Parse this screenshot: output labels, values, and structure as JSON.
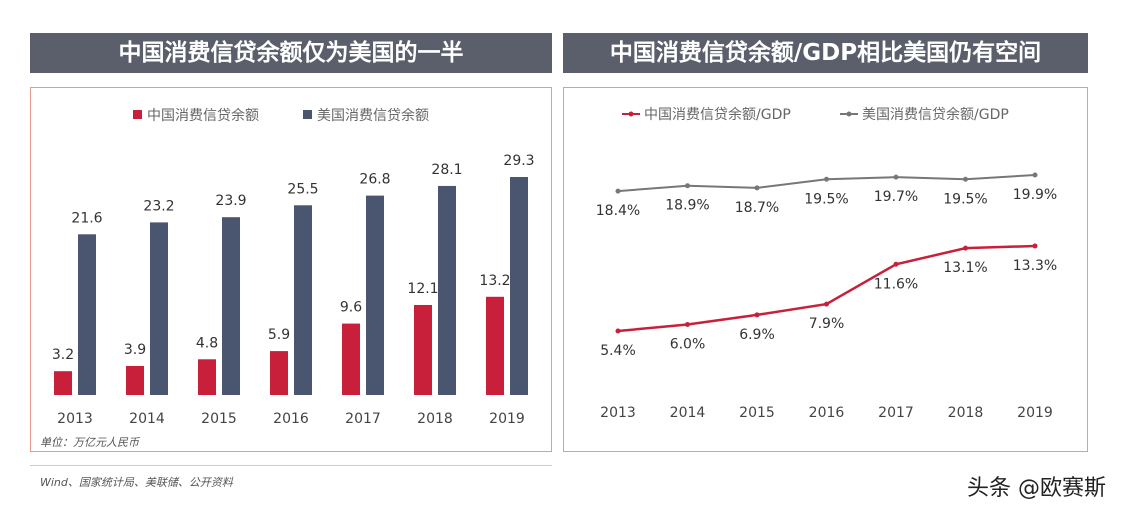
{
  "left_title": "中国消费信贷余额仅为美国的一半",
  "right_title": "中国消费信贷余额/GDP相比美国仍有空间",
  "unit_note": "单位：万亿元人民币",
  "source_note": "Wind、国家统计局、美联储、公开资料",
  "watermark": "头条 @欧赛斯",
  "chart_data": [
    {
      "type": "bar",
      "categories": [
        "2013",
        "2014",
        "2015",
        "2016",
        "2017",
        "2018",
        "2019"
      ],
      "series": [
        {
          "name": "中国消费信贷余额",
          "color": "#c8203a",
          "values": [
            3.2,
            3.9,
            4.8,
            5.9,
            9.6,
            12.1,
            13.2
          ]
        },
        {
          "name": "美国消费信贷余额",
          "color": "#4a5670",
          "values": [
            21.6,
            23.2,
            23.9,
            25.5,
            26.8,
            28.1,
            29.3
          ]
        }
      ],
      "legend": "top"
    },
    {
      "type": "line",
      "categories": [
        "2013",
        "2014",
        "2015",
        "2016",
        "2017",
        "2018",
        "2019"
      ],
      "series": [
        {
          "name": "中国消费信贷余额/GDP",
          "color": "#c8203a",
          "values": [
            5.4,
            6.0,
            6.9,
            7.9,
            11.6,
            13.1,
            13.3
          ],
          "labels": [
            "5.4%",
            "6.0%",
            "6.9%",
            "7.9%",
            "11.6%",
            "13.1%",
            "13.3%"
          ]
        },
        {
          "name": "美国消费信贷余额/GDP",
          "color": "#777777",
          "values": [
            18.4,
            18.9,
            18.7,
            19.5,
            19.7,
            19.5,
            19.9
          ],
          "labels": [
            "18.4%",
            "18.9%",
            "18.7%",
            "19.5%",
            "19.7%",
            "19.5%",
            "19.9%"
          ]
        }
      ],
      "legend": "top"
    }
  ]
}
